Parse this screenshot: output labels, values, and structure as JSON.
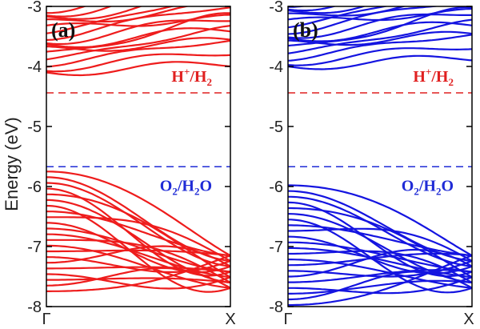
{
  "chart_data": {
    "type": "line",
    "ylabel": "Energy (eV)",
    "ylim": [
      -8,
      -3
    ],
    "yticks": [
      "-3",
      "-4",
      "-5",
      "-6",
      "-7",
      "-8"
    ],
    "xticks": [
      "Γ",
      "X"
    ],
    "reference_levels": [
      {
        "label_main": "H",
        "label_sup": "+",
        "label_tail": "/H",
        "label_sub": "2",
        "energy": -4.44,
        "color": "#e02020",
        "style": "dashed"
      },
      {
        "label_main": "O",
        "label_sub": "2",
        "label_tail": "/H",
        "label_sub2": "2",
        "label_end": "O",
        "energy": -5.67,
        "color": "#1f2bd6",
        "style": "dashed"
      }
    ],
    "panels": [
      {
        "label": "(a)",
        "color": "#ee1c1c",
        "cbm": -4.1,
        "vbm": -5.75,
        "cb_bands": 15,
        "vb_bands": 22
      },
      {
        "label": "(b)",
        "color": "#1414e0",
        "cbm": -4.0,
        "vbm": -5.98,
        "cb_bands": 15,
        "vb_bands": 22
      }
    ]
  }
}
